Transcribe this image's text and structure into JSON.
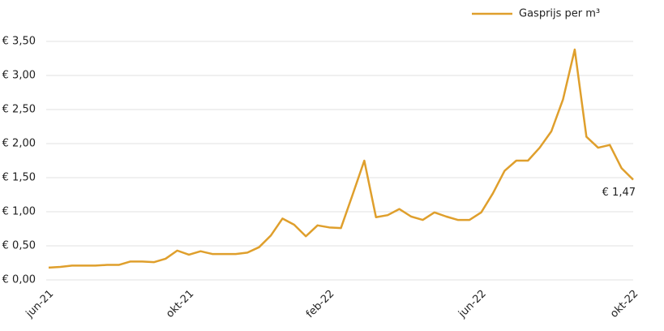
{
  "chart_data": {
    "type": "line",
    "categories": [
      "jun-21",
      null,
      null,
      null,
      null,
      null,
      null,
      null,
      null,
      null,
      null,
      null,
      "okt-21",
      null,
      null,
      null,
      null,
      null,
      null,
      null,
      null,
      null,
      null,
      null,
      "feb-22",
      null,
      null,
      null,
      null,
      null,
      null,
      null,
      null,
      null,
      null,
      null,
      null,
      "jun-22",
      null,
      null,
      null,
      null,
      null,
      null,
      null,
      null,
      null,
      null,
      null,
      null,
      "okt-22"
    ],
    "series": [
      {
        "name": "Gasprijs per m³",
        "color": "#df9f2c",
        "values": [
          0.18,
          0.19,
          0.21,
          0.21,
          0.21,
          0.22,
          0.22,
          0.27,
          0.27,
          0.26,
          0.31,
          0.43,
          0.37,
          0.42,
          0.38,
          0.38,
          0.38,
          0.4,
          0.48,
          0.65,
          0.9,
          0.81,
          0.64,
          0.8,
          0.77,
          0.76,
          1.25,
          1.75,
          0.92,
          0.95,
          1.04,
          0.93,
          0.88,
          0.99,
          0.93,
          0.88,
          0.88,
          0.99,
          1.27,
          1.6,
          1.75,
          1.75,
          1.94,
          2.18,
          2.65,
          3.38,
          2.1,
          1.94,
          1.98,
          1.64,
          1.47
        ]
      }
    ],
    "annotations": [
      {
        "text": "€ 1,47",
        "value": 1.47
      }
    ],
    "ylim": [
      0,
      3.5
    ],
    "yticks": [
      {
        "value": 0,
        "label": "€ 0,00"
      },
      {
        "value": 0.5,
        "label": "€ 0,50"
      },
      {
        "value": 1,
        "label": "€ 1,00"
      },
      {
        "value": 1.5,
        "label": "€ 1,50"
      },
      {
        "value": 2,
        "label": "€ 2,00"
      },
      {
        "value": 2.5,
        "label": "€ 2,50"
      },
      {
        "value": 3,
        "label": "€ 3,00"
      },
      {
        "value": 3.5,
        "label": "€ 3,50"
      }
    ],
    "grid": true,
    "legend": "top-right"
  }
}
